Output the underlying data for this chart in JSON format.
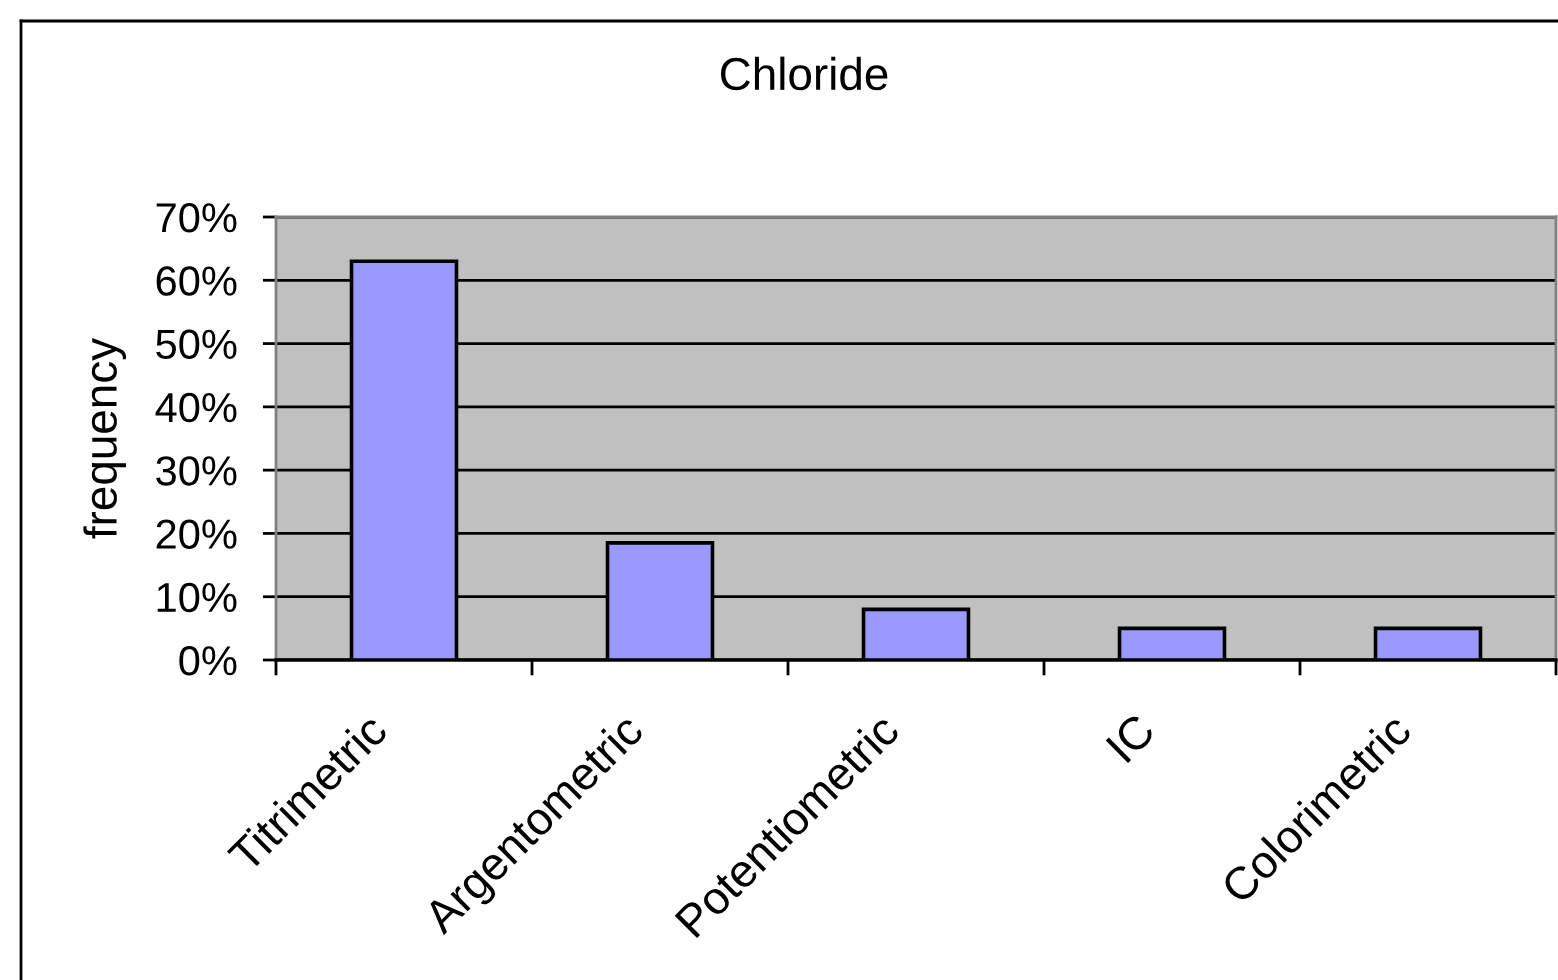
{
  "chart_data": {
    "type": "bar",
    "title": "Chloride",
    "ylabel": "frequency",
    "categories": [
      "Titrimetric",
      "Argentometric",
      "Potentiometric",
      "IC",
      "Colorimetric"
    ],
    "values": [
      63,
      18.5,
      8,
      5,
      5
    ],
    "color": "#9999ff",
    "ylim": [
      0,
      70
    ],
    "yticks": [
      {
        "value": 0,
        "label": "0%"
      },
      {
        "value": 10,
        "label": "10%"
      },
      {
        "value": 20,
        "label": "20%"
      },
      {
        "value": 30,
        "label": "30%"
      },
      {
        "value": 40,
        "label": "40%"
      },
      {
        "value": 50,
        "label": "50%"
      },
      {
        "value": 60,
        "label": "60%"
      },
      {
        "value": 70,
        "label": "70%"
      }
    ],
    "grid": "y"
  }
}
